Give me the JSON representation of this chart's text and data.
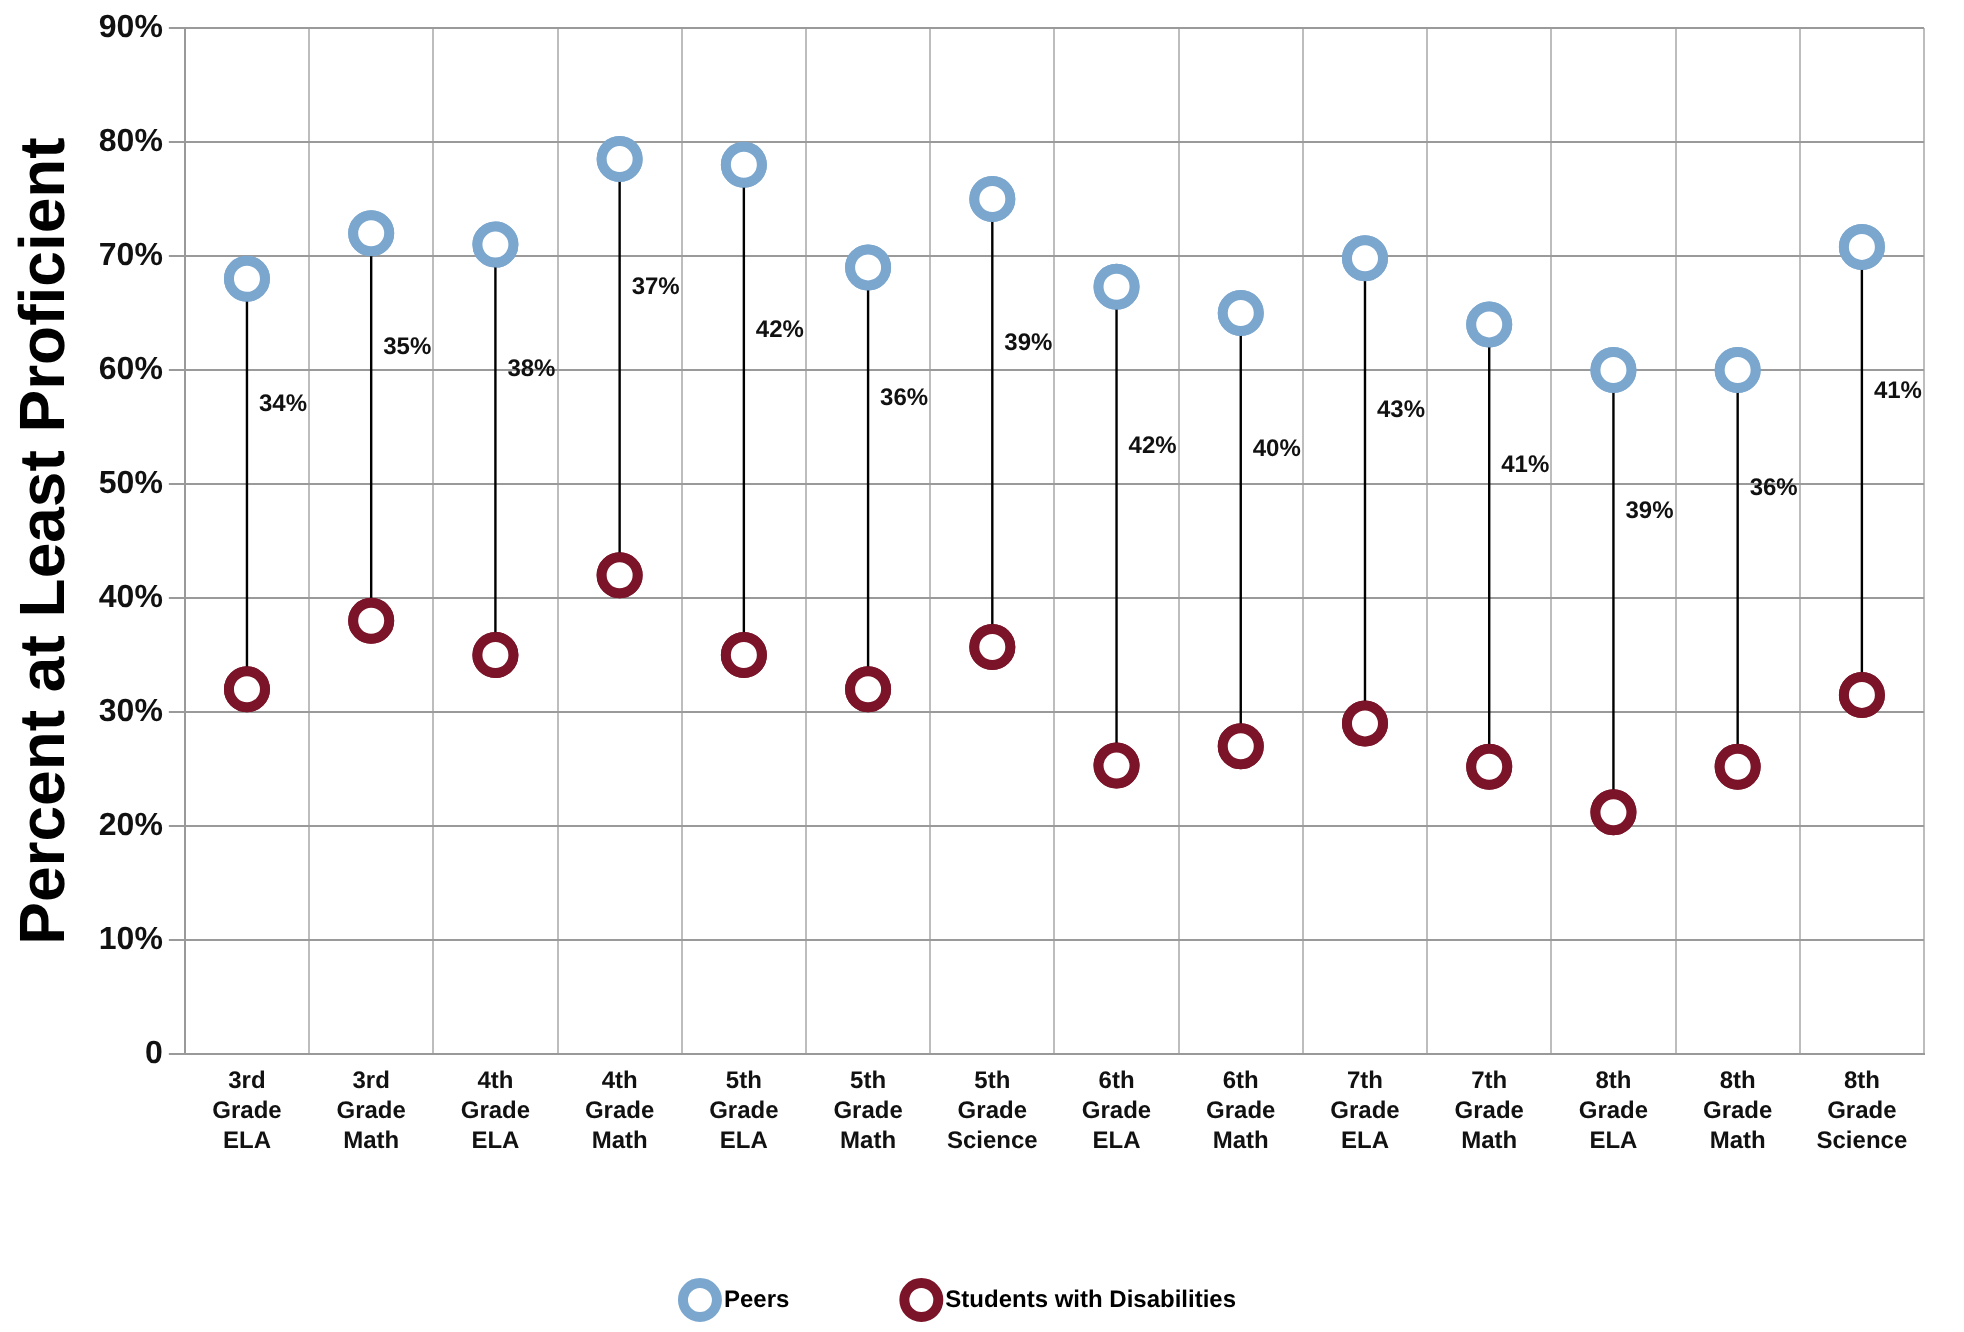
{
  "chart_data": {
    "type": "scatter",
    "ylabel": "Percent at Least Proficient",
    "categories": [
      "3rd Grade ELA",
      "3rd Grade Math",
      "4th Grade ELA",
      "4th Grade Math",
      "5th Grade ELA",
      "5th Grade Math",
      "5th Grade Science",
      "6th Grade ELA",
      "6th Grade Math",
      "7th Grade ELA",
      "7th Grade Math",
      "8th Grade ELA",
      "8th Grade Math",
      "8th Grade Science"
    ],
    "series": [
      {
        "name": "Peers",
        "color": "#7ba7cf",
        "values": [
          68,
          72,
          71,
          78.5,
          78,
          69,
          75,
          67.3,
          65,
          69.8,
          64,
          60,
          60,
          70.8
        ]
      },
      {
        "name": "Students with Disabilities",
        "color": "#7b1428",
        "values": [
          32,
          38,
          35,
          42,
          35,
          32,
          35.7,
          25.3,
          27,
          29,
          25.2,
          21.2,
          25.2,
          31.5
        ]
      }
    ],
    "ylim": [
      0,
      90
    ],
    "yticks": [
      0,
      {
        "value": 10,
        "label": "10%"
      },
      {
        "value": 20,
        "label": "20%"
      },
      {
        "value": 30,
        "label": "30%"
      },
      {
        "value": 40,
        "label": "40%"
      },
      {
        "value": 50,
        "label": "50%"
      },
      {
        "value": 60,
        "label": "60%"
      },
      {
        "value": 70,
        "label": "70%"
      },
      {
        "value": 80,
        "label": "80%"
      },
      {
        "value": 90,
        "label": "90%"
      }
    ],
    "annotations": [
      "34%",
      "35%",
      "38%",
      "37%",
      "42%",
      "36%",
      "39%",
      "42%",
      "40%",
      "43%",
      "41%",
      "39%",
      "36%",
      "41%"
    ],
    "grid": true,
    "legend": "bottom",
    "marker": "circle"
  }
}
